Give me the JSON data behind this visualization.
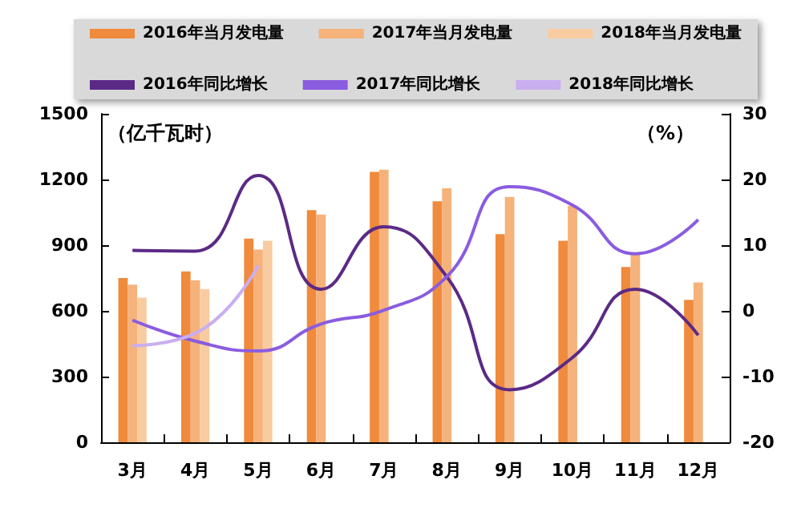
{
  "chart_data": {
    "type": "bar",
    "ylabel": "（亿千瓦时）",
    "y2label": "（%）",
    "categories": [
      "3月",
      "4月",
      "5月",
      "6月",
      "7月",
      "8月",
      "9月",
      "10月",
      "11月",
      "12月"
    ],
    "series": [
      {
        "name": "2016年当月发电量",
        "color": "#f08a3c",
        "values": [
          750,
          780,
          930,
          1060,
          1235,
          1100,
          950,
          920,
          800,
          650
        ]
      },
      {
        "name": "2017年当月发电量",
        "color": "#f5b27a",
        "values": [
          720,
          740,
          880,
          1040,
          1245,
          1160,
          1120,
          1080,
          860,
          730
        ]
      },
      {
        "name": "2018年当月发电量",
        "color": "#f9cba0",
        "values": [
          660,
          700,
          920,
          null,
          null,
          null,
          null,
          null,
          null,
          null
        ]
      },
      {
        "name": "2016年同比增长",
        "type": "line",
        "axis": "y2",
        "color": "#5b2a86",
        "values": [
          9.2,
          9.1,
          20.6,
          3.3,
          12.8,
          5.2,
          -12,
          -7.1,
          3.3,
          -3.7
        ]
      },
      {
        "name": "2017年同比增长",
        "type": "line",
        "axis": "y2",
        "color": "#8a5ce0",
        "values": [
          -1.4,
          -4.6,
          -6.1,
          -2,
          0.1,
          5.2,
          18.9,
          16.1,
          8.7,
          13.9
        ]
      },
      {
        "name": "2018年同比增长",
        "type": "line",
        "axis": "y2",
        "color": "#c9aef0",
        "values": [
          -5.3,
          -3.4,
          6.9,
          null,
          null,
          null,
          null,
          null,
          null,
          null
        ]
      }
    ],
    "ylim": [
      0,
      1500
    ],
    "yticks": [
      0,
      300,
      600,
      900,
      1200,
      1500
    ],
    "y2lim": [
      -20,
      30
    ],
    "y2ticks": [
      -20,
      -10,
      0,
      10,
      20,
      30
    ],
    "grid": false,
    "legend": "top",
    "marker": "none",
    "line_style": "solid"
  }
}
